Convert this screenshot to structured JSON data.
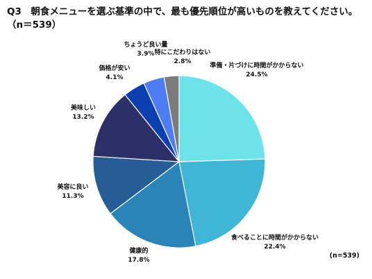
{
  "header": {
    "title": "Q3　朝食メニューを選ぶ基準の中で、最も優先順位が高いものを教えてください。",
    "sample": "（n＝539）"
  },
  "chart_data": {
    "type": "pie",
    "title": "Q3　朝食メニューを選ぶ基準の中で、最も優先順位が高いものを教えてください。",
    "note": "(n=539)",
    "start": "12 o'clock",
    "direction": "clockwise",
    "slices": [
      {
        "label": "準備・片づけに時間がかからない",
        "value": 24.5,
        "text": "24.5%",
        "color": "#6de2e9"
      },
      {
        "label": "食べることに時間がかからない",
        "value": 22.4,
        "text": "22.4%",
        "color": "#3fb6d6"
      },
      {
        "label": "健康的",
        "value": 17.8,
        "text": "17.8%",
        "color": "#2a84b8"
      },
      {
        "label": "美容に良い",
        "value": 11.3,
        "text": "11.3%",
        "color": "#275d97"
      },
      {
        "label": "美味しい",
        "value": 13.2,
        "text": "13.2%",
        "color": "#2c2f68"
      },
      {
        "label": "価格が安い",
        "value": 4.1,
        "text": "4.1%",
        "color": "#0c3fb0"
      },
      {
        "label": "ちょうど良い量",
        "value": 3.9,
        "text": "3.9%",
        "color": "#4d7cf4"
      },
      {
        "label": "特にこだわりはない",
        "value": 2.8,
        "text": "2.8%",
        "color": "#7b7b7b"
      }
    ]
  }
}
